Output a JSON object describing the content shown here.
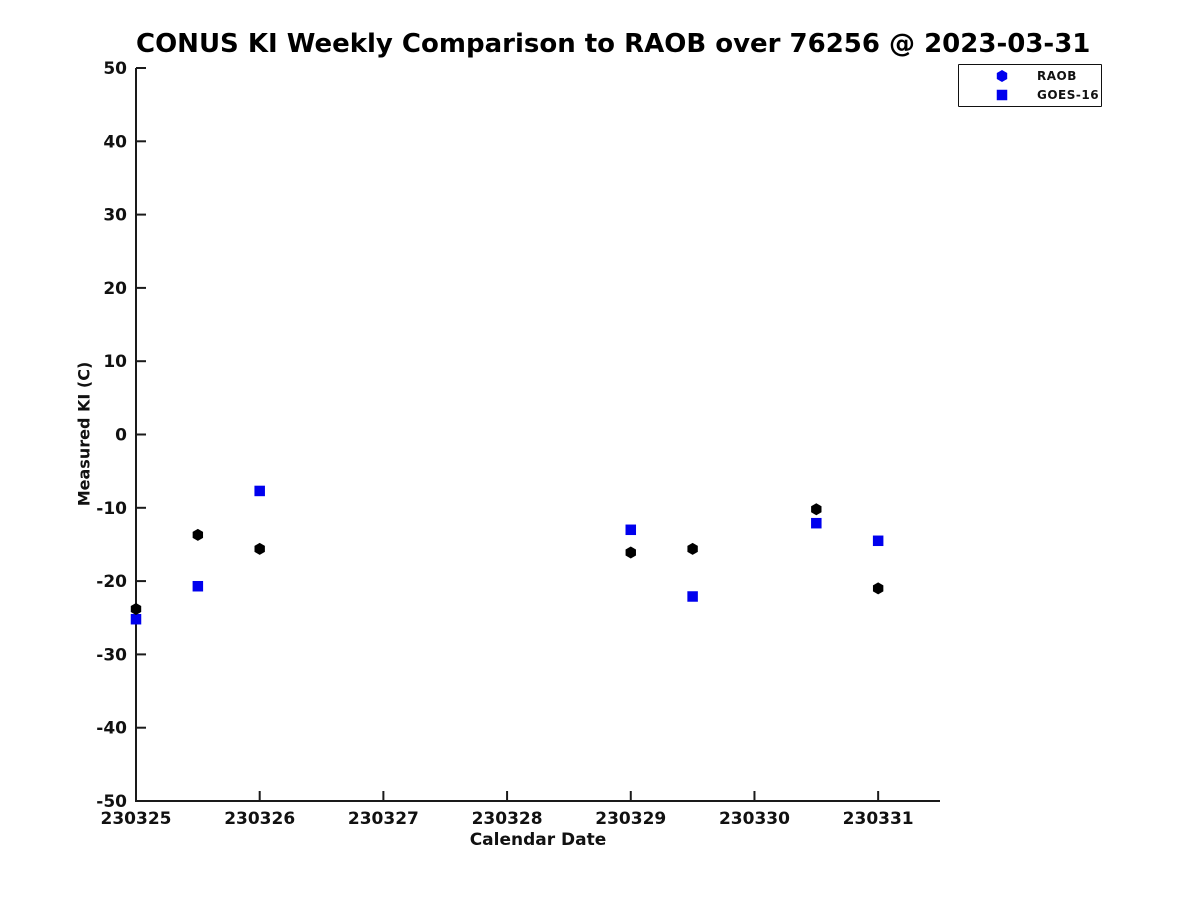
{
  "chart_data": {
    "type": "scatter",
    "title": "CONUS KI Weekly Comparison to RAOB over 76256 @ 2023-03-31",
    "xlabel": "Calendar Date",
    "ylabel": "Measured KI (C)",
    "xlim": [
      230325,
      230331.5
    ],
    "ylim": [
      -50,
      50
    ],
    "x_ticks": [
      230325,
      230326,
      230327,
      230328,
      230329,
      230330,
      230331
    ],
    "y_ticks": [
      -50,
      -40,
      -30,
      -20,
      -10,
      0,
      10,
      20,
      30,
      40,
      50
    ],
    "grid": false,
    "legend_position": "top-right",
    "axis_color": "#1a1a1a",
    "text_color": "#111111",
    "background_color": "#ffffff",
    "series": [
      {
        "name": "RAOB",
        "marker": "hexagon",
        "marker_color": "#000000",
        "legend_marker_color": "#0000ee",
        "points": [
          {
            "x": 230325.0,
            "y": -23.8
          },
          {
            "x": 230325.5,
            "y": -13.7
          },
          {
            "x": 230326.0,
            "y": -15.6
          },
          {
            "x": 230329.0,
            "y": -16.1
          },
          {
            "x": 230329.5,
            "y": -15.6
          },
          {
            "x": 230330.5,
            "y": -10.2
          },
          {
            "x": 230331.0,
            "y": -21.0
          }
        ]
      },
      {
        "name": "GOES-16",
        "marker": "square",
        "marker_color": "#0000ee",
        "legend_marker_color": "#0000ee",
        "points": [
          {
            "x": 230325.0,
            "y": -25.2
          },
          {
            "x": 230325.5,
            "y": -20.7
          },
          {
            "x": 230326.0,
            "y": -7.7
          },
          {
            "x": 230329.0,
            "y": -13.0
          },
          {
            "x": 230329.5,
            "y": -22.1
          },
          {
            "x": 230330.5,
            "y": -12.1
          },
          {
            "x": 230331.0,
            "y": -14.5
          }
        ]
      }
    ]
  }
}
